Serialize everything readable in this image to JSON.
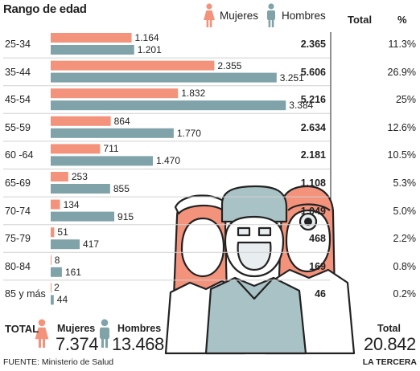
{
  "chart_data": {
    "type": "bar",
    "orientation": "horizontal",
    "title": "Rango de edad",
    "categories": [
      "25-34",
      "35-44",
      "45-54",
      "55-59",
      "60 -64",
      "65-69",
      "70-74",
      "75-79",
      "80-84",
      "85 y más"
    ],
    "series": [
      {
        "name": "Mujeres",
        "color": "#f4937c",
        "values": [
          1164,
          2355,
          1832,
          864,
          711,
          253,
          134,
          51,
          8,
          2
        ],
        "labels": [
          "1.164",
          "2.355",
          "1.832",
          "864",
          "711",
          "253",
          "134",
          "51",
          "8",
          "2"
        ]
      },
      {
        "name": "Hombres",
        "color": "#7fa3a9",
        "values": [
          1201,
          3251,
          3384,
          1770,
          1470,
          855,
          915,
          417,
          161,
          44
        ],
        "labels": [
          "1.201",
          "3.251",
          "3.384",
          "1.770",
          "1.470",
          "855",
          "915",
          "417",
          "161",
          "44"
        ]
      }
    ],
    "xlim": [
      0,
      3450
    ],
    "grid": false,
    "legend_position": "top",
    "columns": {
      "total_header": "Total",
      "pct_header": "%"
    },
    "totals": [
      "2.365",
      "5.606",
      "5.216",
      "2.634",
      "2.181",
      "1.108",
      "1.049",
      "468",
      "169",
      "46"
    ],
    "percentages": [
      "11.3%",
      "26.9%",
      "25%",
      "12.6%",
      "10.5%",
      "5.3%",
      "5.0%",
      "2.2%",
      "0.8%",
      "0.2%"
    ]
  },
  "summary": {
    "label": "TOTAL",
    "women_label": "Mujeres",
    "women_total": "7.374",
    "men_label": "Hombres",
    "men_total": "13.468",
    "grand_label": "Total",
    "grand_total": "20.842"
  },
  "footer": {
    "source": "FUENTE: Ministerio de Salud",
    "brand": "LA TERCERA"
  },
  "colors": {
    "women": "#f4937c",
    "men": "#7fa3a9",
    "scrubs": "#a9c2c6",
    "skin": "#ffffff",
    "outline": "#222222",
    "divider": "#222222"
  },
  "icons": [
    "woman-icon",
    "man-icon",
    "healthcare-workers-illustration"
  ]
}
